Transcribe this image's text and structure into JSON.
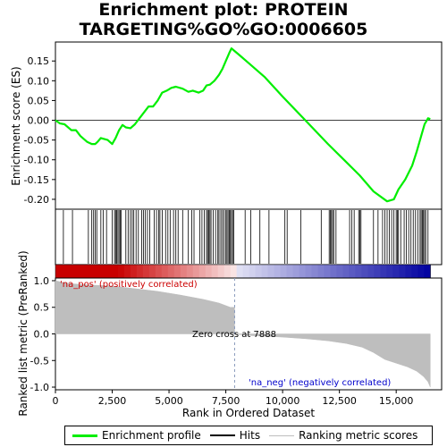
{
  "chart_data": {
    "type": "line",
    "title": "Enrichment plot: PROTEIN TARGETING%GO%GO:0006605",
    "panels": {
      "enrichment": {
        "ylabel": "Enrichment score (ES)",
        "xlim": [
          0,
          17000
        ],
        "ylim": [
          -0.225,
          0.198
        ],
        "yticks": [
          0.15,
          0.1,
          0.05,
          0.0,
          -0.05,
          -0.1,
          -0.15,
          -0.2
        ],
        "grid": false,
        "profile": [
          [
            0,
            0.0
          ],
          [
            200,
            -0.008
          ],
          [
            400,
            -0.01
          ],
          [
            700,
            -0.025
          ],
          [
            900,
            -0.025
          ],
          [
            1100,
            -0.04
          ],
          [
            1400,
            -0.055
          ],
          [
            1600,
            -0.06
          ],
          [
            1750,
            -0.06
          ],
          [
            1850,
            -0.055
          ],
          [
            2000,
            -0.045
          ],
          [
            2300,
            -0.05
          ],
          [
            2500,
            -0.06
          ],
          [
            2650,
            -0.045
          ],
          [
            2800,
            -0.025
          ],
          [
            2950,
            -0.012
          ],
          [
            3100,
            -0.018
          ],
          [
            3300,
            -0.02
          ],
          [
            3500,
            -0.01
          ],
          [
            3700,
            0.005
          ],
          [
            3900,
            0.02
          ],
          [
            4100,
            0.035
          ],
          [
            4300,
            0.035
          ],
          [
            4500,
            0.05
          ],
          [
            4700,
            0.07
          ],
          [
            4900,
            0.075
          ],
          [
            5100,
            0.082
          ],
          [
            5300,
            0.085
          ],
          [
            5600,
            0.08
          ],
          [
            5850,
            0.072
          ],
          [
            6050,
            0.075
          ],
          [
            6300,
            0.07
          ],
          [
            6500,
            0.075
          ],
          [
            6650,
            0.088
          ],
          [
            6800,
            0.09
          ],
          [
            7000,
            0.1
          ],
          [
            7200,
            0.115
          ],
          [
            7350,
            0.13
          ],
          [
            7500,
            0.15
          ],
          [
            7650,
            0.17
          ],
          [
            7750,
            0.182
          ],
          [
            8100,
            0.165
          ],
          [
            8500,
            0.145
          ],
          [
            9200,
            0.11
          ],
          [
            10000,
            0.06
          ],
          [
            11000,
            0.0
          ],
          [
            12000,
            -0.06
          ],
          [
            12700,
            -0.1
          ],
          [
            13400,
            -0.14
          ],
          [
            14000,
            -0.18
          ],
          [
            14600,
            -0.205
          ],
          [
            14900,
            -0.2
          ],
          [
            15100,
            -0.175
          ],
          [
            15400,
            -0.15
          ],
          [
            15700,
            -0.115
          ],
          [
            15900,
            -0.08
          ],
          [
            16100,
            -0.04
          ],
          [
            16250,
            -0.01
          ],
          [
            16400,
            0.005
          ],
          [
            16500,
            0.003
          ]
        ]
      },
      "hits": {
        "positions": [
          350,
          750,
          1450,
          1600,
          1680,
          1750,
          1820,
          2000,
          2100,
          2250,
          2500,
          2600,
          2650,
          2700,
          2750,
          2800,
          2850,
          2900,
          3100,
          3200,
          3300,
          3380,
          3450,
          3550,
          3650,
          3800,
          3880,
          3950,
          4050,
          4150,
          4350,
          4450,
          4550,
          4600,
          4700,
          4850,
          4950,
          5050,
          5200,
          5300,
          5400,
          5600,
          5850,
          6000,
          6100,
          6350,
          6450,
          6550,
          6650,
          6700,
          6750,
          6800,
          6850,
          6950,
          7050,
          7150,
          7200,
          7280,
          7350,
          7420,
          7500,
          7550,
          7600,
          7650,
          7700,
          7750,
          7800,
          7850,
          8350,
          8600,
          9000,
          9400,
          10100,
          10200,
          10800,
          11700,
          12050,
          12100,
          12150,
          12200,
          12250,
          12350,
          12950,
          13050,
          13150,
          13350,
          13400,
          13450,
          14000,
          14200,
          14400,
          14500,
          14600,
          14700,
          14800,
          14900,
          15000,
          15050,
          15100,
          15200,
          15350,
          15450,
          15550,
          15650,
          15750,
          15850,
          15950,
          16050,
          16100,
          16150,
          16200,
          16250,
          16300,
          16400
        ]
      },
      "ranked_metric": {
        "ylabel": "Ranked list metric (PreRanked)",
        "xlabel": "Rank in Ordered Dataset",
        "ylim": [
          -1.05,
          1.05
        ],
        "yticks": [
          1.0,
          0.5,
          0.0,
          -0.5,
          -1.0
        ],
        "xticks": [
          0,
          2500,
          5000,
          7500,
          10000,
          12500,
          15000
        ],
        "xtick_labels": [
          "0",
          "2,500",
          "5,000",
          "7,500",
          "10,000",
          "12,500",
          "15,000"
        ],
        "profile": [
          [
            0,
            1.0
          ],
          [
            300,
            0.97
          ],
          [
            800,
            0.94
          ],
          [
            1500,
            0.92
          ],
          [
            2500,
            0.9
          ],
          [
            3500,
            0.85
          ],
          [
            4500,
            0.8
          ],
          [
            5500,
            0.73
          ],
          [
            6500,
            0.65
          ],
          [
            7200,
            0.58
          ],
          [
            7700,
            0.5
          ],
          [
            7888,
            0.0
          ],
          [
            8500,
            -0.03
          ],
          [
            10000,
            -0.06
          ],
          [
            11000,
            -0.09
          ],
          [
            12000,
            -0.13
          ],
          [
            12800,
            -0.18
          ],
          [
            13500,
            -0.25
          ],
          [
            14000,
            -0.35
          ],
          [
            14500,
            -0.48
          ],
          [
            15000,
            -0.55
          ],
          [
            15500,
            -0.62
          ],
          [
            15900,
            -0.7
          ],
          [
            16200,
            -0.8
          ],
          [
            16400,
            -0.9
          ],
          [
            16500,
            -1.0
          ]
        ],
        "zero_cross_label": "Zero cross at 7888",
        "zero_cross": 7888,
        "pos_label": "'na_pos' (positively correlated)",
        "neg_label": "'na_neg' (negatively correlated)"
      }
    },
    "legend": {
      "placement": "bottom",
      "entries": [
        "Enrichment profile",
        "Hits",
        "Ranking metric scores"
      ]
    },
    "colors": {
      "profile": "#00ee00",
      "hits": "#000000",
      "metric": "#bebebe",
      "pos_label": "#cc0000",
      "neg_label": "#0000cc",
      "zero_line": "#8899bb"
    }
  }
}
